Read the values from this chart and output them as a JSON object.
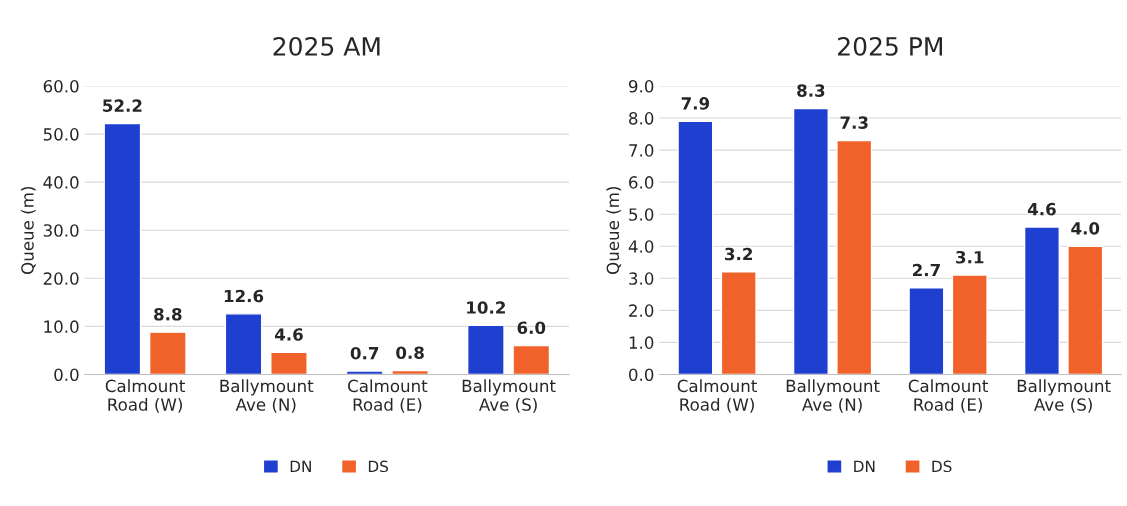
{
  "chart_data": [
    {
      "type": "bar",
      "title": "2025 AM",
      "ylabel": "Queue (m)",
      "categories": [
        "Calmount\nRoad (W)",
        "Ballymount\nAve (N)",
        "Calmount\nRoad (E)",
        "Ballymount\nAve (S)"
      ],
      "series": [
        {
          "name": "DN",
          "color": "#1f3fd0",
          "values": [
            52.2,
            12.6,
            0.7,
            10.2
          ],
          "value_labels": [
            "52.2",
            "12.6",
            "0.7",
            "10.2"
          ]
        },
        {
          "name": "DS",
          "color": "#f0622a",
          "values": [
            8.8,
            4.6,
            0.8,
            6.0
          ],
          "value_labels": [
            "8.8",
            "4.6",
            "0.8",
            "6.0"
          ]
        }
      ],
      "ylim": [
        0,
        60
      ],
      "yticks": [
        {
          "value": 0,
          "label": "0.0"
        },
        {
          "value": 10,
          "label": "10.0"
        },
        {
          "value": 20,
          "label": "20.0"
        },
        {
          "value": 30,
          "label": "30.0"
        },
        {
          "value": 40,
          "label": "40.0"
        },
        {
          "value": 50,
          "label": "50.0"
        },
        {
          "value": 60,
          "label": "60.0"
        }
      ],
      "grid": "y",
      "legend": "bottom"
    },
    {
      "type": "bar",
      "title": "2025 PM",
      "ylabel": "Queue (m)",
      "categories": [
        "Calmount\nRoad (W)",
        "Ballymount\nAve (N)",
        "Calmount\nRoad (E)",
        "Ballymount\nAve (S)"
      ],
      "series": [
        {
          "name": "DN",
          "color": "#1f3fd0",
          "values": [
            7.9,
            8.3,
            2.7,
            4.6
          ],
          "value_labels": [
            "7.9",
            "8.3",
            "2.7",
            "4.6"
          ]
        },
        {
          "name": "DS",
          "color": "#f0622a",
          "values": [
            3.2,
            7.3,
            3.1,
            4.0
          ],
          "value_labels": [
            "3.2",
            "7.3",
            "3.1",
            "4.0"
          ]
        }
      ],
      "ylim": [
        0,
        9
      ],
      "yticks": [
        {
          "value": 0,
          "label": "0.0"
        },
        {
          "value": 1,
          "label": "1.0"
        },
        {
          "value": 2,
          "label": "2.0"
        },
        {
          "value": 3,
          "label": "3.0"
        },
        {
          "value": 4,
          "label": "4.0"
        },
        {
          "value": 5,
          "label": "5.0"
        },
        {
          "value": 6,
          "label": "6.0"
        },
        {
          "value": 7,
          "label": "7.0"
        },
        {
          "value": 8,
          "label": "8.0"
        },
        {
          "value": 9,
          "label": "9.0"
        }
      ],
      "grid": "y",
      "legend": "bottom"
    }
  ]
}
